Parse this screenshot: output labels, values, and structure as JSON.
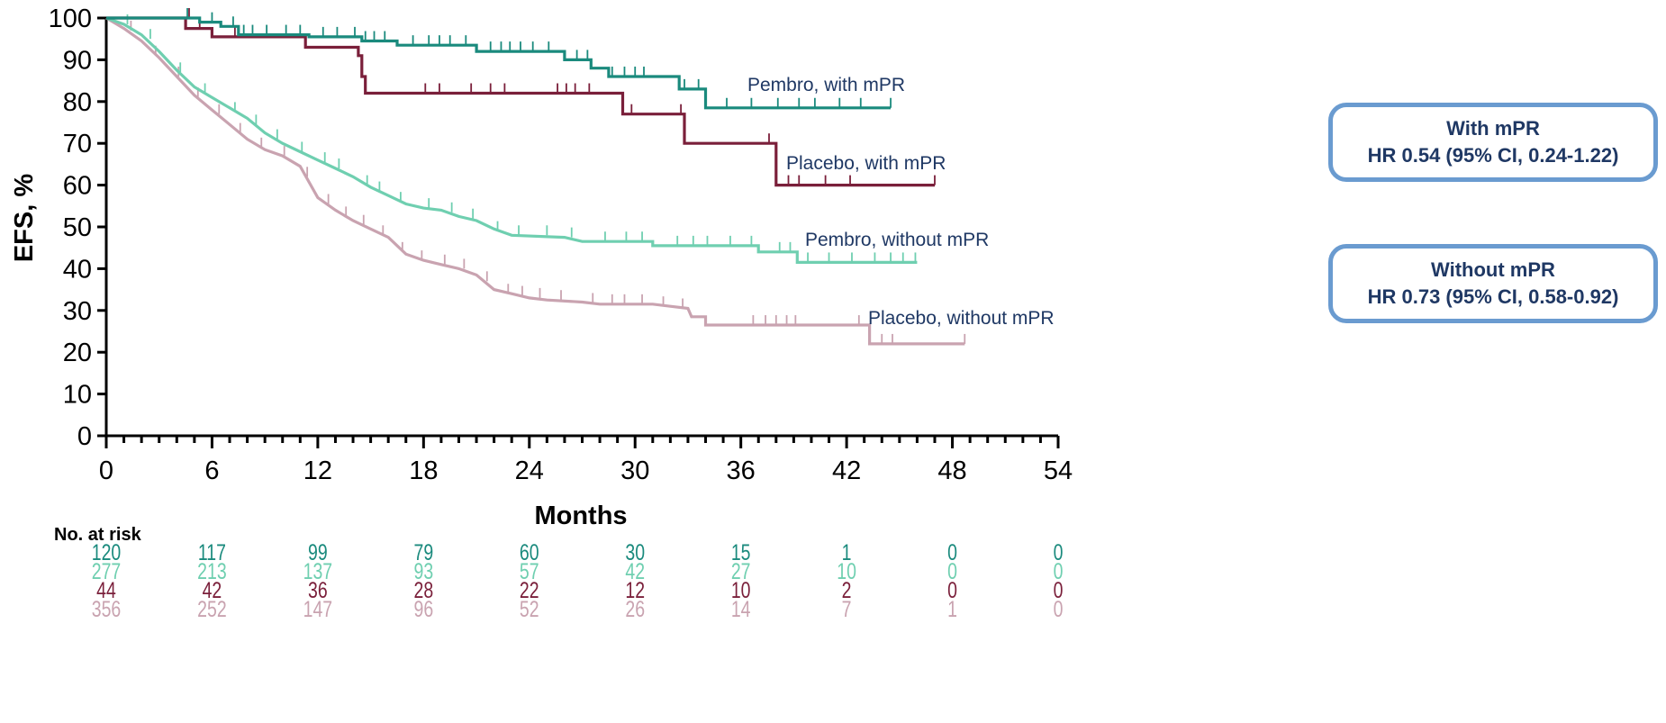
{
  "chart_data": {
    "type": "line",
    "subtype": "kaplan-meier step curves",
    "ylabel": "EFS, %",
    "xlabel": "Months",
    "xlim": [
      0,
      54
    ],
    "ylim": [
      0,
      100
    ],
    "xticks": [
      0,
      6,
      12,
      18,
      24,
      30,
      36,
      42,
      48,
      54
    ],
    "yticks": [
      0,
      10,
      20,
      30,
      40,
      50,
      60,
      70,
      80,
      90,
      100
    ],
    "grid": false,
    "series": [
      {
        "name": "Pembro, with mPR",
        "color": "#1a8a7d",
        "points": [
          [
            0,
            100
          ],
          [
            5.3,
            100
          ],
          [
            5.3,
            99
          ],
          [
            6.5,
            99
          ],
          [
            6.5,
            98
          ],
          [
            7.5,
            98
          ],
          [
            7.5,
            96
          ],
          [
            11.5,
            96
          ],
          [
            11.5,
            95.5
          ],
          [
            14.5,
            95.5
          ],
          [
            14.5,
            94.5
          ],
          [
            16.5,
            94.5
          ],
          [
            16.5,
            93.5
          ],
          [
            21,
            93.5
          ],
          [
            21,
            92
          ],
          [
            26,
            92
          ],
          [
            26,
            90
          ],
          [
            27.5,
            90
          ],
          [
            27.5,
            88
          ],
          [
            28.5,
            88
          ],
          [
            28.5,
            86
          ],
          [
            32.5,
            86
          ],
          [
            32.5,
            83
          ],
          [
            34,
            83
          ],
          [
            34,
            78.5
          ],
          [
            44.5,
            78.5
          ]
        ],
        "censors": [
          [
            4.6,
            100
          ],
          [
            6,
            99
          ],
          [
            7.2,
            98
          ],
          [
            7.8,
            96
          ],
          [
            8.3,
            96
          ],
          [
            9.1,
            96
          ],
          [
            10.2,
            96
          ],
          [
            11,
            96
          ],
          [
            12.3,
            95.5
          ],
          [
            13.1,
            95.5
          ],
          [
            14.1,
            95.5
          ],
          [
            14.7,
            94.5
          ],
          [
            15.2,
            94.5
          ],
          [
            15.8,
            94.5
          ],
          [
            17.4,
            93.5
          ],
          [
            18.3,
            93.5
          ],
          [
            18.9,
            93.5
          ],
          [
            19.5,
            93.5
          ],
          [
            20.4,
            93.5
          ],
          [
            21.8,
            92
          ],
          [
            22.4,
            92
          ],
          [
            22.9,
            92
          ],
          [
            23.5,
            92
          ],
          [
            24.2,
            92
          ],
          [
            25.1,
            92
          ],
          [
            26.7,
            90
          ],
          [
            27.3,
            90
          ],
          [
            28.7,
            86
          ],
          [
            29.4,
            86
          ],
          [
            30,
            86
          ],
          [
            30.5,
            86
          ],
          [
            32.8,
            83
          ],
          [
            33.6,
            83
          ],
          [
            35.2,
            78.5
          ],
          [
            36.6,
            78.5
          ],
          [
            38.1,
            78.5
          ],
          [
            39.3,
            78.5
          ],
          [
            40.2,
            78.5
          ],
          [
            41.6,
            78.5
          ],
          [
            42.8,
            78.5
          ],
          [
            44.5,
            78.5
          ]
        ],
        "curve_label": "Pembro, with mPR"
      },
      {
        "name": "Placebo, with mPR",
        "color": "#7a1f3a",
        "points": [
          [
            0,
            100
          ],
          [
            4.5,
            100
          ],
          [
            4.5,
            97.5
          ],
          [
            6,
            97.5
          ],
          [
            6,
            95.5
          ],
          [
            11.3,
            95.5
          ],
          [
            11.3,
            93
          ],
          [
            14.3,
            93
          ],
          [
            14.3,
            91
          ],
          [
            14.5,
            91
          ],
          [
            14.5,
            86
          ],
          [
            14.7,
            86
          ],
          [
            14.7,
            82
          ],
          [
            29.3,
            82
          ],
          [
            29.3,
            77
          ],
          [
            32.8,
            77
          ],
          [
            32.8,
            70
          ],
          [
            38,
            70
          ],
          [
            38,
            60
          ],
          [
            47,
            60
          ]
        ],
        "censors": [
          [
            4.7,
            100
          ],
          [
            5.3,
            97.5
          ],
          [
            7.3,
            95.5
          ],
          [
            18.1,
            82
          ],
          [
            18.9,
            82
          ],
          [
            20.7,
            82
          ],
          [
            21.8,
            82
          ],
          [
            22.6,
            82
          ],
          [
            25.6,
            82
          ],
          [
            26.1,
            82
          ],
          [
            26.6,
            82
          ],
          [
            27.4,
            82
          ],
          [
            29.8,
            77
          ],
          [
            32.6,
            77
          ],
          [
            37.6,
            70
          ],
          [
            38.7,
            60
          ],
          [
            39.3,
            60
          ],
          [
            40.8,
            60
          ],
          [
            42.2,
            60
          ],
          [
            47,
            60
          ]
        ],
        "curve_label": "Placebo, with mPR"
      },
      {
        "name": "Pembro, without mPR",
        "color": "#6fcfb0",
        "points": [
          [
            0,
            100
          ],
          [
            1,
            98.5
          ],
          [
            2,
            96
          ],
          [
            3,
            92
          ],
          [
            4,
            87.5
          ],
          [
            5,
            83.5
          ],
          [
            6,
            81
          ],
          [
            7,
            78.5
          ],
          [
            8,
            76
          ],
          [
            9,
            72.5
          ],
          [
            10,
            70
          ],
          [
            11,
            68
          ],
          [
            12,
            66
          ],
          [
            13,
            64
          ],
          [
            14,
            62
          ],
          [
            15,
            59.5
          ],
          [
            16,
            57.5
          ],
          [
            17,
            55.5
          ],
          [
            18,
            54.5
          ],
          [
            19,
            54
          ],
          [
            20,
            52.5
          ],
          [
            21,
            51.5
          ],
          [
            22,
            49.5
          ],
          [
            23,
            48
          ],
          [
            26,
            47.5
          ],
          [
            27,
            46.5
          ],
          [
            31,
            46.5
          ],
          [
            31,
            45.5
          ],
          [
            37,
            45.5
          ],
          [
            37,
            44
          ],
          [
            39.2,
            44
          ],
          [
            39.2,
            41.5
          ],
          [
            46,
            41.5
          ]
        ],
        "censors": [
          [
            1.2,
            98.5
          ],
          [
            2.5,
            95
          ],
          [
            4.2,
            87
          ],
          [
            5.6,
            82
          ],
          [
            7.3,
            77.5
          ],
          [
            8.5,
            74.5
          ],
          [
            9.7,
            71
          ],
          [
            11.1,
            68
          ],
          [
            12.4,
            65.5
          ],
          [
            13.2,
            64
          ],
          [
            14.8,
            60
          ],
          [
            15.5,
            58.5
          ],
          [
            16.7,
            56
          ],
          [
            18.3,
            54.5
          ],
          [
            19.6,
            53.5
          ],
          [
            20.8,
            52
          ],
          [
            22.2,
            49
          ],
          [
            23.4,
            48
          ],
          [
            25,
            48
          ],
          [
            26.4,
            47.5
          ],
          [
            28.3,
            46.5
          ],
          [
            29.5,
            46.5
          ],
          [
            30.4,
            46.5
          ],
          [
            32.4,
            45.5
          ],
          [
            33.3,
            45.5
          ],
          [
            34.1,
            45.5
          ],
          [
            35.4,
            45.5
          ],
          [
            36.6,
            45.5
          ],
          [
            38.2,
            44
          ],
          [
            38.8,
            44
          ],
          [
            39.8,
            41.5
          ],
          [
            41,
            41.5
          ],
          [
            42.3,
            41.5
          ],
          [
            43.6,
            41.5
          ],
          [
            44.5,
            41.5
          ],
          [
            45.2,
            41.5
          ],
          [
            45.9,
            41.5
          ]
        ],
        "curve_label": "Pembro, without mPR"
      },
      {
        "name": "Placebo, without mPR",
        "color": "#c9a3b0",
        "points": [
          [
            0,
            100
          ],
          [
            1,
            97.5
          ],
          [
            2,
            94.5
          ],
          [
            3,
            90.5
          ],
          [
            4,
            86
          ],
          [
            5,
            81.5
          ],
          [
            6,
            78
          ],
          [
            7,
            74.5
          ],
          [
            8,
            71
          ],
          [
            9,
            68.5
          ],
          [
            10,
            67
          ],
          [
            11,
            64.5
          ],
          [
            12,
            57
          ],
          [
            13,
            54
          ],
          [
            14,
            51.5
          ],
          [
            15,
            49.5
          ],
          [
            16,
            47.5
          ],
          [
            17,
            43.5
          ],
          [
            18,
            42
          ],
          [
            19,
            41
          ],
          [
            20,
            40
          ],
          [
            21,
            38.5
          ],
          [
            22,
            35
          ],
          [
            23,
            34
          ],
          [
            24,
            33
          ],
          [
            25,
            32.5
          ],
          [
            27,
            32
          ],
          [
            28,
            31.5
          ],
          [
            31,
            31.5
          ],
          [
            32,
            31
          ],
          [
            33,
            30.5
          ],
          [
            33.2,
            28.5
          ],
          [
            34,
            28.5
          ],
          [
            34,
            26.5
          ],
          [
            43.3,
            26.5
          ],
          [
            43.3,
            22
          ],
          [
            48.7,
            22
          ]
        ],
        "censors": [
          [
            1.4,
            97
          ],
          [
            2.8,
            91
          ],
          [
            4.1,
            86
          ],
          [
            5.2,
            81
          ],
          [
            6.4,
            77
          ],
          [
            7.6,
            72.5
          ],
          [
            8.8,
            69
          ],
          [
            10.1,
            67
          ],
          [
            11.4,
            62
          ],
          [
            12.6,
            55.5
          ],
          [
            13.6,
            52.5
          ],
          [
            14.6,
            50.5
          ],
          [
            15.7,
            48
          ],
          [
            16.8,
            44
          ],
          [
            17.9,
            42
          ],
          [
            19.2,
            41
          ],
          [
            20.3,
            40
          ],
          [
            21.6,
            37
          ],
          [
            22.8,
            34
          ],
          [
            23.6,
            33.5
          ],
          [
            24.6,
            33
          ],
          [
            25.8,
            32.5
          ],
          [
            27.6,
            31.8
          ],
          [
            28.7,
            31.5
          ],
          [
            29.4,
            31.5
          ],
          [
            30.4,
            31.5
          ],
          [
            31.6,
            31
          ],
          [
            32.7,
            30.5
          ],
          [
            36.7,
            26.5
          ],
          [
            37.4,
            26.5
          ],
          [
            38,
            26.5
          ],
          [
            38.6,
            26.5
          ],
          [
            39.1,
            26.5
          ],
          [
            42.7,
            26.5
          ],
          [
            44,
            22
          ],
          [
            44.6,
            22
          ],
          [
            48.7,
            22
          ]
        ],
        "curve_label": "Placebo, without mPR"
      }
    ],
    "annotations": [
      {
        "title": "With mPR",
        "text": "HR 0.54 (95% CI, 0.24-1.22)"
      },
      {
        "title": "Without mPR",
        "text": "HR 0.73 (95% CI, 0.58-0.92)"
      }
    ],
    "risk_table": {
      "title": "No. at risk",
      "times": [
        0,
        6,
        12,
        18,
        24,
        30,
        36,
        42,
        48,
        54
      ],
      "rows": [
        {
          "color": "#1a8a7d",
          "values": [
            120,
            117,
            99,
            79,
            60,
            30,
            15,
            1,
            0,
            0
          ]
        },
        {
          "color": "#6fcfb0",
          "values": [
            277,
            213,
            137,
            93,
            57,
            42,
            27,
            10,
            0,
            0
          ]
        },
        {
          "color": "#7a1f3a",
          "values": [
            44,
            42,
            36,
            28,
            22,
            12,
            10,
            2,
            0,
            0
          ]
        },
        {
          "color": "#c9a3b0",
          "values": [
            356,
            252,
            147,
            96,
            52,
            26,
            14,
            7,
            1,
            0
          ]
        }
      ]
    }
  }
}
